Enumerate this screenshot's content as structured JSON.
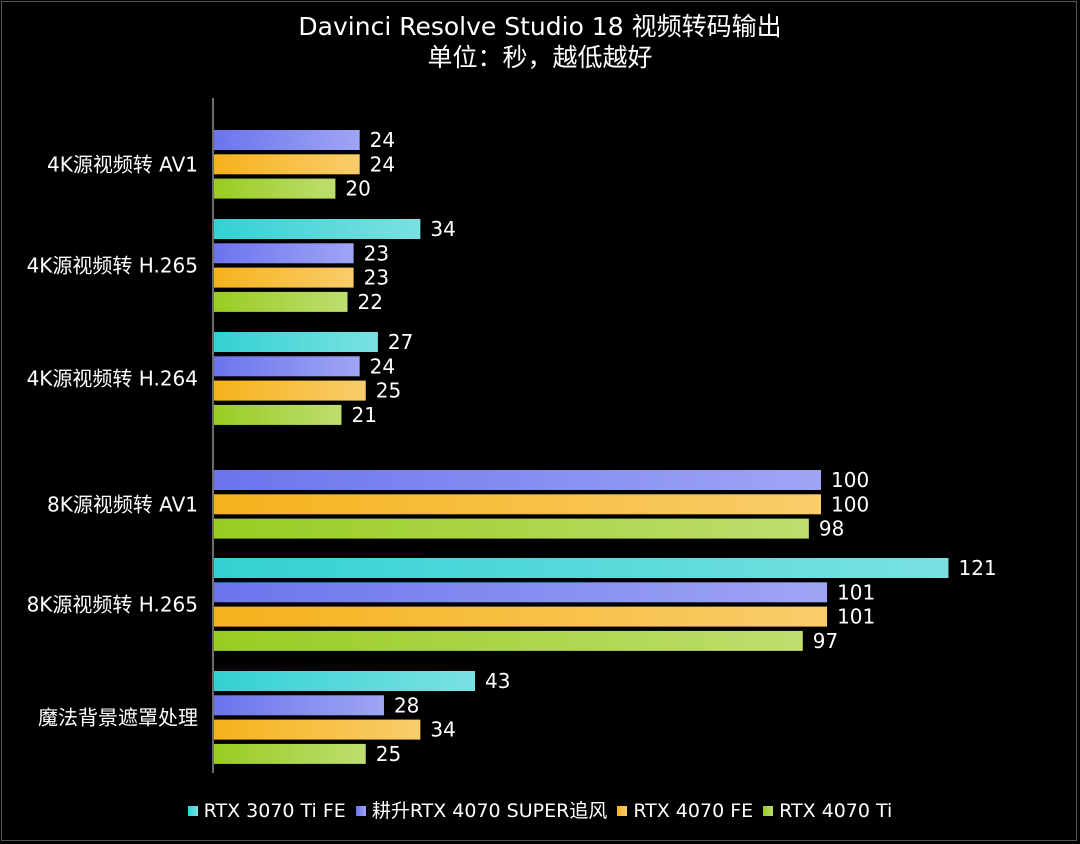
{
  "chart_data": {
    "type": "bar",
    "orientation": "horizontal",
    "title": "Davinci Resolve Studio 18 视频转码输出",
    "subtitle": "单位：秒，越低越好",
    "categories": [
      "4K源视频转 AV1",
      "4K源视频转 H.265",
      "4K源视频转 H.264",
      "8K源视频转 AV1",
      "8K源视频转 H.265",
      "魔法背景遮罩处理"
    ],
    "series": [
      {
        "name": "RTX 3070 Ti FE",
        "color": "#33d1d3",
        "values": [
          null,
          34,
          27,
          null,
          121,
          43
        ]
      },
      {
        "name": "耕升RTX 4070 SUPER追风",
        "color": "#6b74ee",
        "values": [
          24,
          23,
          24,
          100,
          101,
          28
        ]
      },
      {
        "name": "RTX 4070 FE",
        "color": "#f6b21c",
        "values": [
          24,
          23,
          25,
          100,
          101,
          34
        ]
      },
      {
        "name": "RTX 4070 Ti",
        "color": "#99cc22",
        "values": [
          20,
          22,
          21,
          98,
          97,
          25
        ]
      }
    ],
    "xlim": [
      0,
      125
    ],
    "grid": false,
    "legend_position": "bottom"
  }
}
